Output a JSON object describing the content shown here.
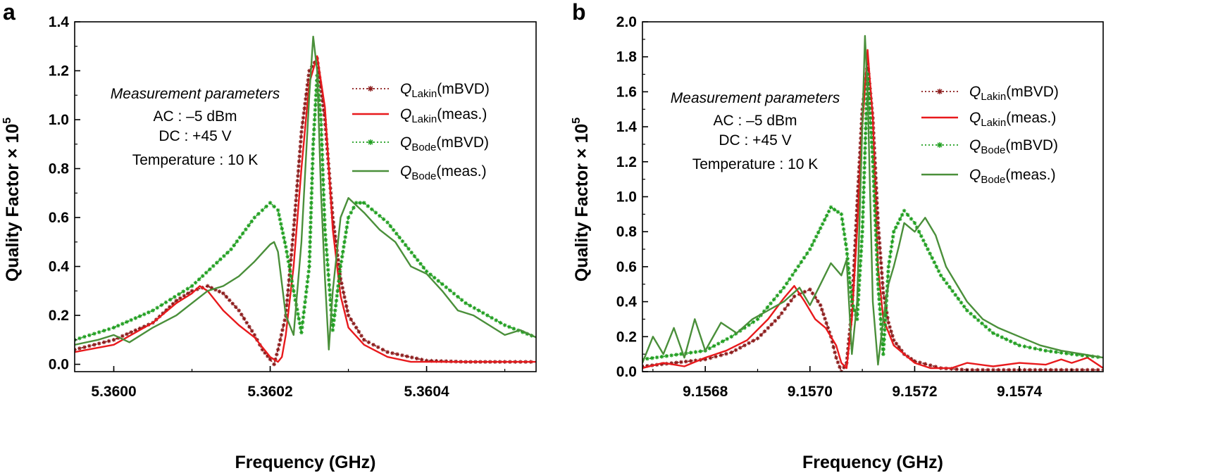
{
  "chart_data": [
    {
      "type": "line",
      "panel_label": "a",
      "xlabel": "Frequency (GHz)",
      "ylabel": "Quality Factor × 10",
      "ylabel_exp": "5",
      "xlim": [
        5.35995,
        5.36054
      ],
      "ylim": [
        -0.03,
        1.4
      ],
      "xticks": [
        5.36,
        5.3602,
        5.3604
      ],
      "xtick_labels": [
        "5.3600",
        "5.3602",
        "5.3604"
      ],
      "yticks": [
        0,
        0.2,
        0.4,
        0.6,
        0.8,
        1.0,
        1.2,
        1.4
      ],
      "ytick_labels": [
        "0.0",
        "0.2",
        "0.4",
        "0.6",
        "0.8",
        "1.0",
        "1.2",
        "1.4"
      ],
      "annotation": {
        "title": "Measurement parameters",
        "lines": [
          "AC : –5 dBm",
          "DC : +45 V",
          "Temperature : 10 K"
        ]
      },
      "legend_position": "top-right",
      "series": [
        {
          "name": "Q_Lakin(mBVD)",
          "base": "Q",
          "sub": "Lakin",
          "suffix": "(mBVD)",
          "style": "dotted-markers",
          "color": "#8b1a1a",
          "x": [
            5.35995,
            5.36,
            5.36005,
            5.36008,
            5.3601,
            5.36012,
            5.36014,
            5.36016,
            5.36018,
            5.36019,
            5.3602,
            5.360205,
            5.36021,
            5.36022,
            5.36023,
            5.36024,
            5.36025,
            5.36026,
            5.36027,
            5.36028,
            5.36029,
            5.3603,
            5.36032,
            5.36035,
            5.3604,
            5.36045,
            5.3605,
            5.36054
          ],
          "y": [
            0.06,
            0.1,
            0.17,
            0.26,
            0.3,
            0.32,
            0.29,
            0.22,
            0.12,
            0.06,
            0.02,
            0.0,
            0.06,
            0.2,
            0.55,
            0.95,
            1.2,
            1.25,
            1.0,
            0.6,
            0.35,
            0.2,
            0.1,
            0.05,
            0.015,
            0.01,
            0.01,
            0.01
          ]
        },
        {
          "name": "Q_Lakin(meas.)",
          "base": "Q",
          "sub": "Lakin",
          "suffix": "(meas.)",
          "style": "solid",
          "color": "#e8191c",
          "x": [
            5.35995,
            5.36,
            5.36005,
            5.36008,
            5.3601,
            5.36011,
            5.36012,
            5.36014,
            5.36016,
            5.36018,
            5.36019,
            5.3602,
            5.36021,
            5.360215,
            5.36022,
            5.36023,
            5.36024,
            5.36025,
            5.36026,
            5.36027,
            5.36028,
            5.36029,
            5.3603,
            5.36032,
            5.36035,
            5.36038,
            5.3604,
            5.36045,
            5.3605,
            5.36054
          ],
          "y": [
            0.05,
            0.08,
            0.17,
            0.25,
            0.29,
            0.32,
            0.3,
            0.22,
            0.16,
            0.11,
            0.07,
            0.03,
            0.01,
            0.03,
            0.12,
            0.4,
            0.8,
            1.15,
            1.26,
            1.05,
            0.55,
            0.28,
            0.15,
            0.08,
            0.03,
            0.01,
            0.01,
            0.01,
            0.01,
            0.01
          ]
        },
        {
          "name": "Q_Bode(mBVD)",
          "base": "Q",
          "sub": "Bode",
          "suffix": "(mBVD)",
          "style": "dotted-markers",
          "color": "#1f9e1f",
          "x": [
            5.35995,
            5.36,
            5.36005,
            5.3601,
            5.36015,
            5.36018,
            5.3602,
            5.36021,
            5.36022,
            5.36023,
            5.36024,
            5.36025,
            5.360255,
            5.36026,
            5.360265,
            5.36027,
            5.36028,
            5.36029,
            5.3603,
            5.36031,
            5.36032,
            5.36035,
            5.3604,
            5.36045,
            5.3605,
            5.36054
          ],
          "y": [
            0.1,
            0.15,
            0.22,
            0.32,
            0.47,
            0.6,
            0.66,
            0.63,
            0.48,
            0.3,
            0.13,
            0.4,
            0.9,
            1.18,
            1.0,
            0.55,
            0.14,
            0.4,
            0.6,
            0.66,
            0.66,
            0.58,
            0.38,
            0.25,
            0.16,
            0.11
          ]
        },
        {
          "name": "Q_Bode(meas.)",
          "base": "Q",
          "sub": "Bode",
          "suffix": "(meas.)",
          "style": "solid",
          "color": "#4a8f3a",
          "x": [
            5.35995,
            5.35998,
            5.36,
            5.36002,
            5.36005,
            5.36008,
            5.3601,
            5.36012,
            5.36014,
            5.36016,
            5.36018,
            5.3602,
            5.360205,
            5.36021,
            5.36022,
            5.36023,
            5.36024,
            5.36025,
            5.360255,
            5.36026,
            5.360265,
            5.36027,
            5.360275,
            5.36028,
            5.36029,
            5.3603,
            5.36031,
            5.36032,
            5.36034,
            5.36036,
            5.36038,
            5.3604,
            5.36042,
            5.36044,
            5.36046,
            5.36048,
            5.3605,
            5.36052,
            5.36054
          ],
          "y": [
            0.08,
            0.1,
            0.12,
            0.09,
            0.15,
            0.2,
            0.25,
            0.3,
            0.32,
            0.36,
            0.42,
            0.49,
            0.5,
            0.46,
            0.2,
            0.12,
            0.5,
            1.1,
            1.34,
            1.2,
            0.7,
            0.35,
            0.06,
            0.3,
            0.6,
            0.68,
            0.65,
            0.62,
            0.55,
            0.5,
            0.4,
            0.37,
            0.3,
            0.22,
            0.2,
            0.16,
            0.12,
            0.14,
            0.11
          ]
        }
      ]
    },
    {
      "type": "line",
      "panel_label": "b",
      "xlabel": "Frequency (GHz)",
      "ylabel": "Quality Factor × 10",
      "ylabel_exp": "5",
      "xlim": [
        9.15668,
        9.15756
      ],
      "ylim": [
        0,
        2.0
      ],
      "xticks": [
        9.1568,
        9.157,
        9.1572,
        9.1574
      ],
      "xtick_labels": [
        "9.1568",
        "9.1570",
        "9.1572",
        "9.1574"
      ],
      "yticks": [
        0,
        0.2,
        0.4,
        0.6,
        0.8,
        1.0,
        1.2,
        1.4,
        1.6,
        1.8,
        2.0
      ],
      "ytick_labels": [
        "0.0",
        "0.2",
        "0.4",
        "0.6",
        "0.8",
        "1.0",
        "1.2",
        "1.4",
        "1.6",
        "1.8",
        "2.0"
      ],
      "annotation": {
        "title": "Measurement parameters",
        "lines": [
          "AC : –5 dBm",
          "DC : +45 V",
          "Temperature : 10 K"
        ]
      },
      "legend_position": "top-right",
      "series": [
        {
          "name": "Q_Lakin(mBVD)",
          "base": "Q",
          "sub": "Lakin",
          "suffix": "(mBVD)",
          "style": "dotted-markers",
          "color": "#8b1a1a",
          "x": [
            9.15668,
            9.1568,
            9.15685,
            9.1569,
            9.15694,
            9.15697,
            9.157,
            9.15702,
            9.15704,
            9.15705,
            9.15706,
            9.15707,
            9.15708,
            9.15709,
            9.1571,
            9.15711,
            9.15712,
            9.15713,
            9.15714,
            9.15715,
            9.15716,
            9.15718,
            9.1572,
            9.15725,
            9.1573,
            9.15735,
            9.1574,
            9.15745,
            9.1575,
            9.15756
          ],
          "y": [
            0.03,
            0.07,
            0.11,
            0.19,
            0.31,
            0.43,
            0.47,
            0.38,
            0.2,
            0.08,
            0.0,
            0.05,
            0.35,
            0.95,
            1.5,
            1.76,
            1.45,
            0.85,
            0.45,
            0.28,
            0.18,
            0.1,
            0.06,
            0.02,
            0.01,
            0.01,
            0.01,
            0.01,
            0.01,
            0.01
          ]
        },
        {
          "name": "Q_Lakin(meas.)",
          "base": "Q",
          "sub": "Lakin",
          "suffix": "(meas.)",
          "style": "solid",
          "color": "#e8191c",
          "x": [
            9.15668,
            9.15672,
            9.15676,
            9.1568,
            9.15684,
            9.15688,
            9.15692,
            9.15695,
            9.15697,
            9.15699,
            9.15701,
            9.15703,
            9.15705,
            9.15706,
            9.15707,
            9.15708,
            9.15709,
            9.1571,
            9.15711,
            9.15712,
            9.15713,
            9.15714,
            9.15716,
            9.15718,
            9.1572,
            9.15723,
            9.15727,
            9.1573,
            9.15735,
            9.1574,
            9.15745,
            9.15748,
            9.1575,
            9.15753,
            9.15756
          ],
          "y": [
            0.02,
            0.05,
            0.03,
            0.08,
            0.12,
            0.18,
            0.3,
            0.42,
            0.49,
            0.4,
            0.3,
            0.25,
            0.15,
            0.05,
            0.02,
            0.3,
            0.8,
            1.4,
            1.84,
            1.45,
            0.6,
            0.3,
            0.15,
            0.1,
            0.05,
            0.02,
            0.02,
            0.05,
            0.03,
            0.05,
            0.04,
            0.07,
            0.05,
            0.08,
            0.02
          ]
        },
        {
          "name": "Q_Bode(mBVD)",
          "base": "Q",
          "sub": "Bode",
          "suffix": "(mBVD)",
          "style": "dotted-markers",
          "color": "#1f9e1f",
          "x": [
            9.15668,
            9.1568,
            9.15685,
            9.1569,
            9.15695,
            9.157,
            9.15704,
            9.15706,
            9.15707,
            9.15708,
            9.15709,
            9.1571,
            9.15711,
            9.15712,
            9.15713,
            9.15714,
            9.15715,
            9.15716,
            9.15718,
            9.1572,
            9.15725,
            9.1573,
            9.15735,
            9.1574,
            9.15745,
            9.1575,
            9.15756
          ],
          "y": [
            0.07,
            0.12,
            0.2,
            0.3,
            0.48,
            0.7,
            0.94,
            0.9,
            0.7,
            0.4,
            0.3,
            0.8,
            1.7,
            1.2,
            0.5,
            0.1,
            0.6,
            0.8,
            0.92,
            0.85,
            0.55,
            0.35,
            0.22,
            0.15,
            0.12,
            0.1,
            0.08
          ]
        },
        {
          "name": "Q_Bode(meas.)",
          "base": "Q",
          "sub": "Bode",
          "suffix": "(meas.)",
          "style": "solid",
          "color": "#4a8f3a",
          "x": [
            9.15668,
            9.1567,
            9.15672,
            9.15674,
            9.15676,
            9.15678,
            9.1568,
            9.15683,
            9.15686,
            9.15689,
            9.15692,
            9.15695,
            9.15698,
            9.157,
            9.15702,
            9.15704,
            9.15706,
            9.15707,
            9.15708,
            9.15709,
            9.1571,
            9.157105,
            9.15711,
            9.15712,
            9.15713,
            9.15714,
            9.15715,
            9.15716,
            9.15717,
            9.15718,
            9.1572,
            9.15722,
            9.15724,
            9.15726,
            9.15728,
            9.1573,
            9.15733,
            9.15736,
            9.1574,
            9.15744,
            9.15748,
            9.15752,
            9.15756
          ],
          "y": [
            0.05,
            0.2,
            0.1,
            0.25,
            0.08,
            0.3,
            0.12,
            0.28,
            0.22,
            0.3,
            0.35,
            0.4,
            0.48,
            0.38,
            0.5,
            0.62,
            0.55,
            0.64,
            0.1,
            0.4,
            1.4,
            1.92,
            1.6,
            0.4,
            0.04,
            0.3,
            0.5,
            0.6,
            0.72,
            0.85,
            0.8,
            0.88,
            0.78,
            0.6,
            0.5,
            0.4,
            0.3,
            0.25,
            0.2,
            0.15,
            0.12,
            0.1,
            0.08
          ]
        }
      ]
    }
  ]
}
